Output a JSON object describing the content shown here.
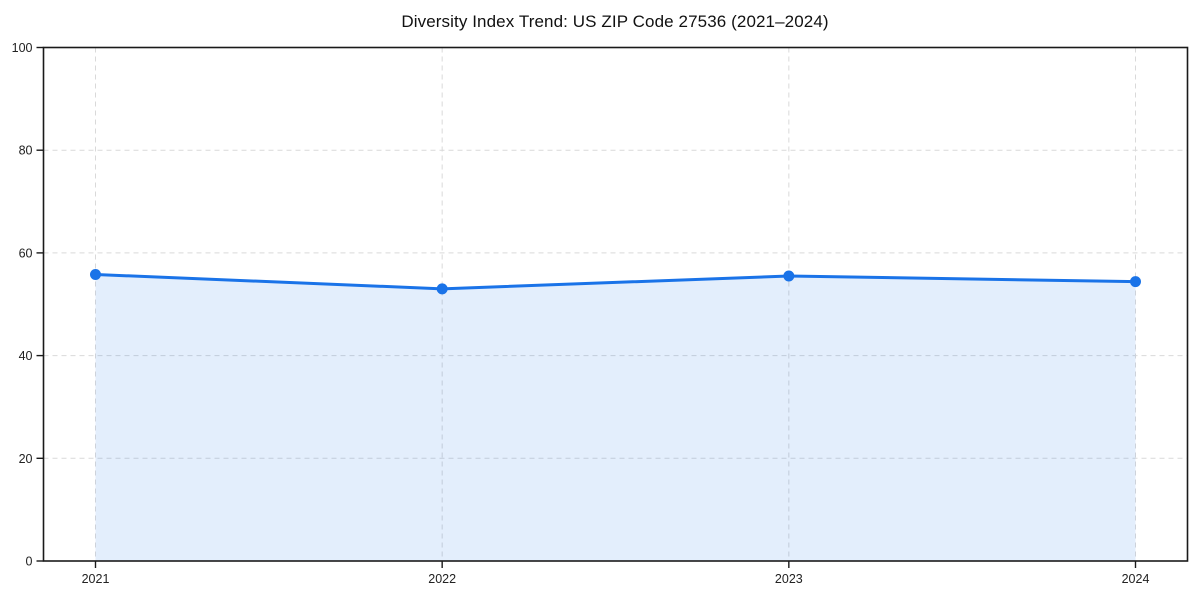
{
  "chart_data": {
    "type": "area",
    "title": "Diversity Index Trend: US ZIP Code 27536 (2021–2024)",
    "categories": [
      "2021",
      "2022",
      "2023",
      "2024"
    ],
    "series": [
      {
        "name": "Diversity Index",
        "values": [
          55.8,
          53.0,
          55.5,
          54.4
        ]
      }
    ],
    "xlabel": "",
    "ylabel": "",
    "ylim": [
      0,
      100
    ],
    "yticks": [
      0,
      20,
      40,
      60,
      80,
      100
    ],
    "grid": true,
    "grid_style": "dashed",
    "legend": "none",
    "line_color": "#1a73e8",
    "marker_color": "#1a73e8",
    "fill_color": "#1a73e8",
    "fill_opacity": 0.12,
    "grid_color": "#d9d9d9",
    "spine_color": "#1a1a1a",
    "tick_label_color": "#222222",
    "background_color": "#ffffff"
  }
}
